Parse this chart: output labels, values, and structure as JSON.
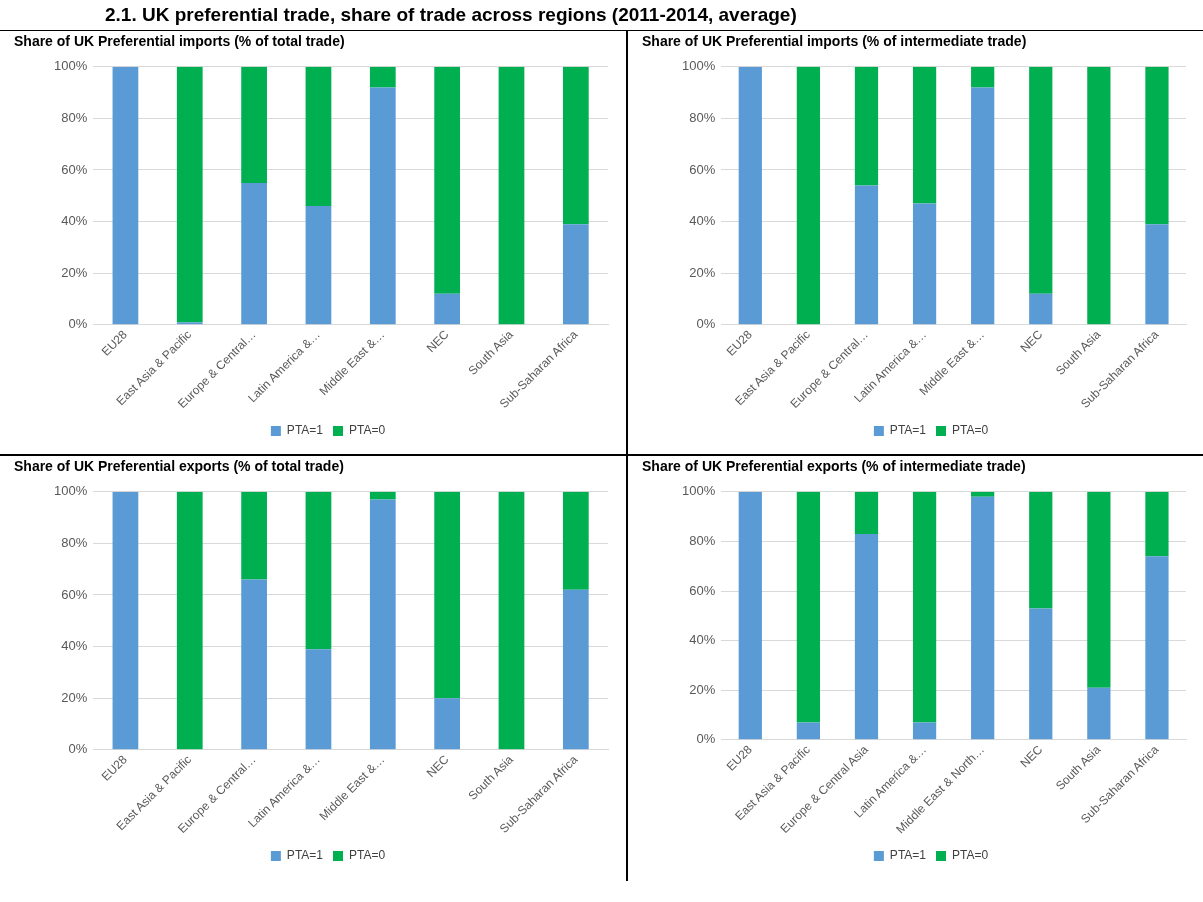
{
  "chart_data": [
    {
      "type": "bar",
      "title": "Share of UK Preferential imports (% of total trade)",
      "annotations": [
        "2.1. UK preferential trade, share of trade across regions (2011-2014, average)"
      ],
      "categories": [
        "EU28",
        "East Asia & Pacific",
        "Europe & Central…",
        "Latin America &…",
        "Middle East &…",
        "NEC",
        "South Asia",
        "Sub-Saharan Africa"
      ],
      "stacked": true,
      "grid": "y",
      "legend": "bottom",
      "ylim": [
        0,
        100
      ],
      "yticks": [
        {
          "value": 0,
          "label": "0%"
        },
        {
          "value": 20,
          "label": "20%"
        },
        {
          "value": 40,
          "label": "40%"
        },
        {
          "value": 60,
          "label": "60%"
        },
        {
          "value": 80,
          "label": "80%"
        },
        {
          "value": 100,
          "label": "100%"
        }
      ],
      "series": [
        {
          "name": "PTA=1",
          "color": "#5b9bd5",
          "values": [
            100,
            1,
            55,
            46,
            92,
            12,
            0,
            39
          ]
        },
        {
          "name": "PTA=0",
          "color": "#00b050",
          "values": [
            0,
            99,
            45,
            54,
            8,
            88,
            100,
            61
          ]
        }
      ]
    },
    {
      "type": "bar",
      "title": "Share of UK Preferential imports (% of intermediate trade)",
      "categories": [
        "EU28",
        "East Asia & Pacific",
        "Europe & Central…",
        "Latin America &…",
        "Middle East &…",
        "NEC",
        "South Asia",
        "Sub-Saharan Africa"
      ],
      "stacked": true,
      "grid": "y",
      "legend": "bottom",
      "ylim": [
        0,
        100
      ],
      "yticks": [
        {
          "value": 0,
          "label": "0%"
        },
        {
          "value": 20,
          "label": "20%"
        },
        {
          "value": 40,
          "label": "40%"
        },
        {
          "value": 60,
          "label": "60%"
        },
        {
          "value": 80,
          "label": "80%"
        },
        {
          "value": 100,
          "label": "100%"
        }
      ],
      "series": [
        {
          "name": "PTA=1",
          "color": "#5b9bd5",
          "values": [
            100,
            0,
            54,
            47,
            92,
            12,
            0,
            39
          ]
        },
        {
          "name": "PTA=0",
          "color": "#00b050",
          "values": [
            0,
            100,
            46,
            53,
            8,
            88,
            100,
            61
          ]
        }
      ]
    },
    {
      "type": "bar",
      "title": "Share of UK Preferential exports (% of total trade)",
      "categories": [
        "EU28",
        "East Asia & Pacific",
        "Europe & Central…",
        "Latin America &…",
        "Middle East &…",
        "NEC",
        "South Asia",
        "Sub-Saharan Africa"
      ],
      "stacked": true,
      "grid": "y",
      "legend": "bottom",
      "ylim": [
        0,
        100
      ],
      "yticks": [
        {
          "value": 0,
          "label": "0%"
        },
        {
          "value": 20,
          "label": "20%"
        },
        {
          "value": 40,
          "label": "40%"
        },
        {
          "value": 60,
          "label": "60%"
        },
        {
          "value": 80,
          "label": "80%"
        },
        {
          "value": 100,
          "label": "100%"
        }
      ],
      "series": [
        {
          "name": "PTA=1",
          "color": "#5b9bd5",
          "values": [
            100,
            0,
            66,
            39,
            97,
            20,
            0,
            62
          ]
        },
        {
          "name": "PTA=0",
          "color": "#00b050",
          "values": [
            0,
            100,
            34,
            61,
            3,
            80,
            100,
            38
          ]
        }
      ]
    },
    {
      "type": "bar",
      "title": "Share of UK Preferential exports (% of intermediate trade)",
      "categories": [
        "EU28",
        "East Asia & Pacific",
        "Europe & Central Asia",
        "Latin America &…",
        "Middle East & North…",
        "NEC",
        "South Asia",
        "Sub-Saharan Africa"
      ],
      "stacked": true,
      "grid": "y",
      "legend": "bottom",
      "ylim": [
        0,
        100
      ],
      "yticks": [
        {
          "value": 0,
          "label": "0%"
        },
        {
          "value": 20,
          "label": "20%"
        },
        {
          "value": 40,
          "label": "40%"
        },
        {
          "value": 60,
          "label": "60%"
        },
        {
          "value": 80,
          "label": "80%"
        },
        {
          "value": 100,
          "label": "100%"
        }
      ],
      "series": [
        {
          "name": "PTA=1",
          "color": "#5b9bd5",
          "values": [
            100,
            7,
            83,
            7,
            98,
            53,
            21,
            74
          ]
        },
        {
          "name": "PTA=0",
          "color": "#00b050",
          "values": [
            0,
            93,
            17,
            93,
            2,
            47,
            79,
            26
          ]
        }
      ]
    }
  ]
}
